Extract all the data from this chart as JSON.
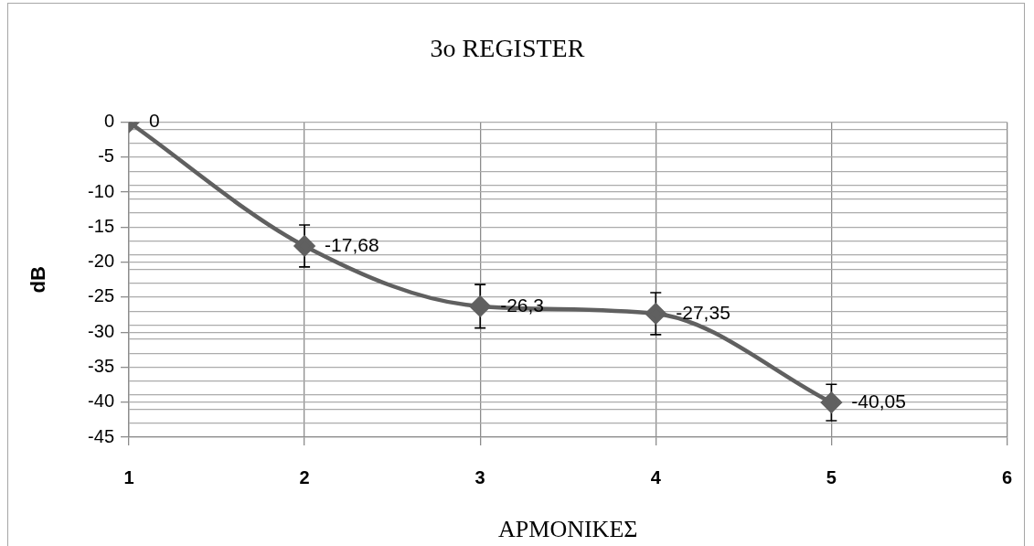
{
  "chart_data": {
    "type": "line",
    "title": "3o REGISTER",
    "xlabel": "ΑΡΜΟΝΙΚΕΣ",
    "ylabel": "dB",
    "x": [
      1,
      2,
      3,
      4,
      5
    ],
    "values": [
      0,
      -17.68,
      -26.3,
      -27.35,
      -40.05
    ],
    "color": "#606060",
    "errors": [
      null,
      3,
      3.1,
      3,
      2.6
    ],
    "value_labels": [
      "0",
      "-17,68",
      "-26,3",
      "-27,35",
      "-40,05"
    ],
    "xlim": [
      1,
      6
    ],
    "xticks": [
      1,
      2,
      3,
      4,
      5,
      6
    ],
    "ylim": [
      -45,
      0
    ],
    "yticks": [
      0,
      {
        "value": -1,
        "label": null
      },
      {
        "value": -3,
        "label": null
      },
      -5,
      {
        "value": -7,
        "label": null
      },
      {
        "value": -9,
        "label": null
      },
      -10,
      {
        "value": -11,
        "label": null
      },
      {
        "value": -13,
        "label": null
      },
      -15,
      {
        "value": -17,
        "label": null
      },
      {
        "value": -19,
        "label": null
      },
      -20,
      {
        "value": -21,
        "label": null
      },
      {
        "value": -23,
        "label": null
      },
      -25,
      {
        "value": -27,
        "label": null
      },
      {
        "value": -29,
        "label": null
      },
      -30,
      {
        "value": -31,
        "label": null
      },
      {
        "value": -33,
        "label": null
      },
      -35,
      {
        "value": -37,
        "label": null
      },
      {
        "value": -39,
        "label": null
      },
      -40,
      {
        "value": -41,
        "label": null
      },
      {
        "value": -43,
        "label": null
      },
      -45
    ],
    "grid": true,
    "marker": "diamond",
    "line_style": "solid"
  }
}
